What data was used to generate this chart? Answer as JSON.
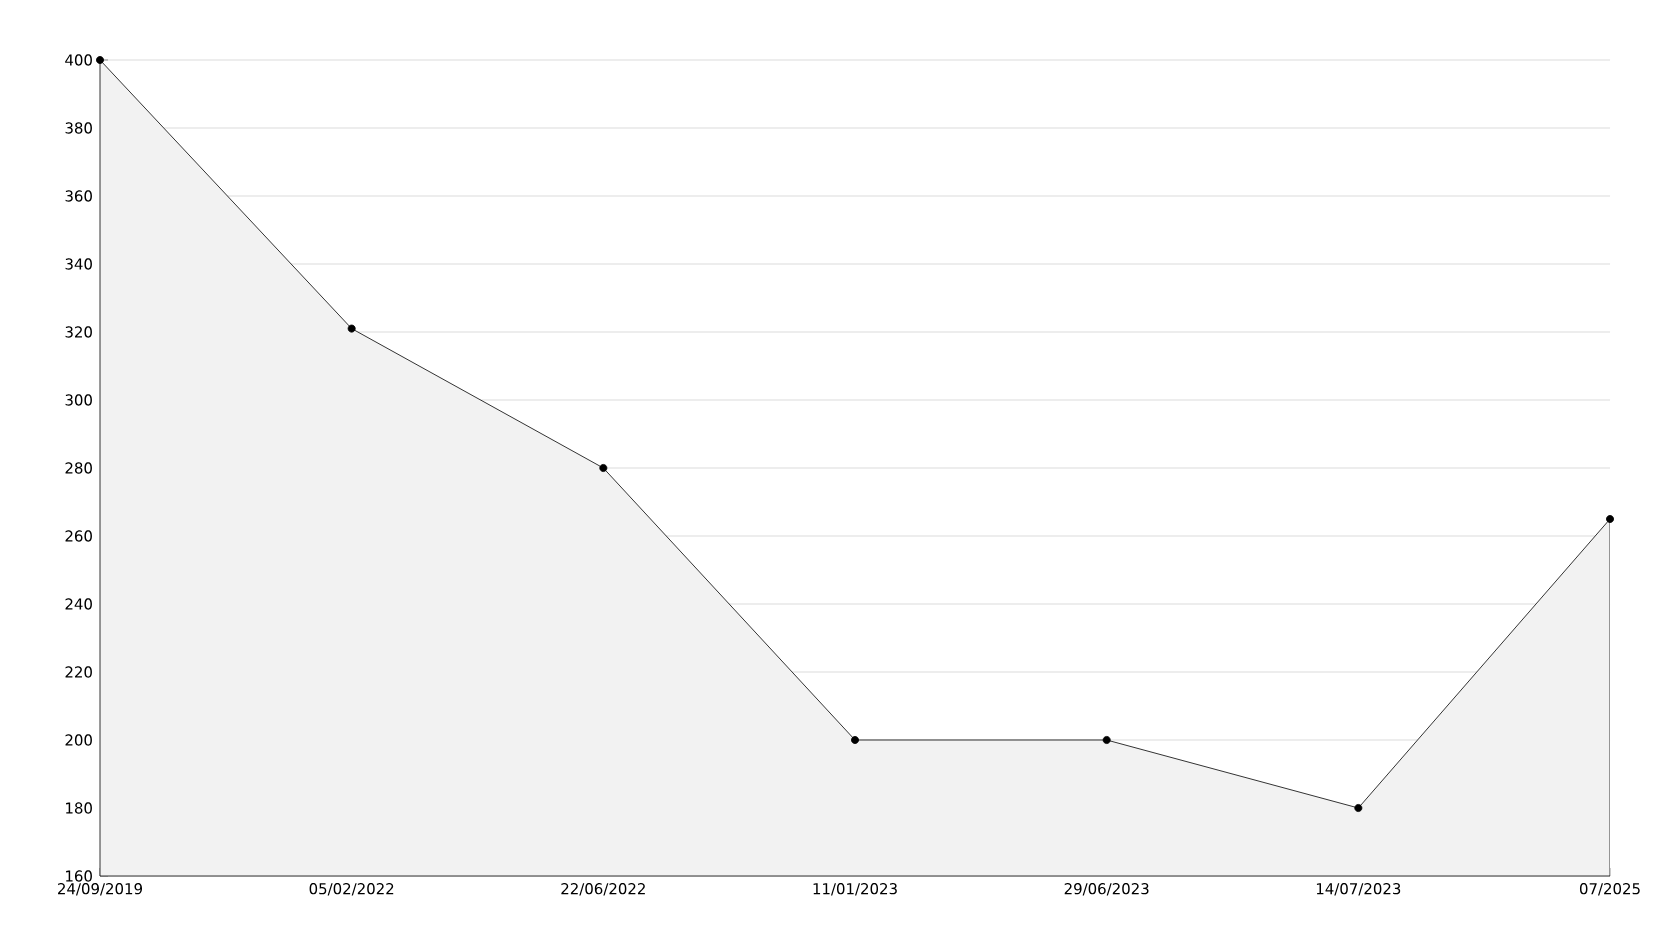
{
  "chart_data": {
    "type": "area",
    "categories": [
      "24/09/2019",
      "05/02/2022",
      "22/06/2022",
      "11/01/2023",
      "29/06/2023",
      "14/07/2023",
      "07/2025"
    ],
    "series": [
      {
        "color": "#000000",
        "values": [
          400,
          321,
          280,
          200,
          200,
          180,
          265
        ]
      }
    ],
    "ylim": [
      160,
      400
    ],
    "yticks": [
      160,
      180,
      200,
      220,
      240,
      260,
      280,
      300,
      320,
      340,
      360,
      380,
      400
    ],
    "grid": "y",
    "marker": "circle",
    "line_style": "solid"
  }
}
